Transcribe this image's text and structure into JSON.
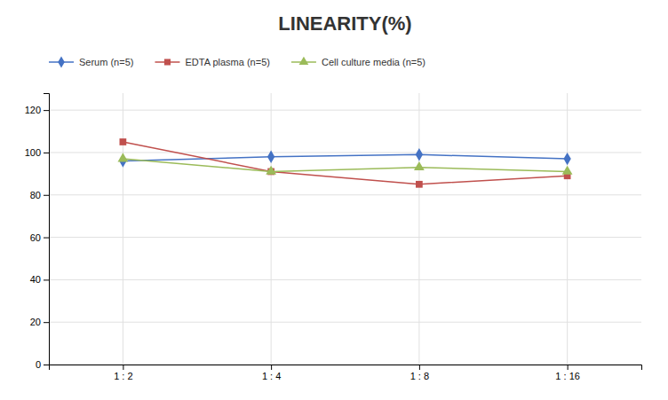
{
  "chart_data": {
    "type": "line",
    "title": "LINEARITY(%)",
    "categories": [
      "1 : 2",
      "1 : 4",
      "1 : 8",
      "1 : 16"
    ],
    "series": [
      {
        "name": "Serum (n=5)",
        "color": "#4472C4",
        "marker": "diamond",
        "values": [
          96,
          98,
          99,
          97
        ]
      },
      {
        "name": "EDTA plasma (n=5)",
        "color": "#C0504D",
        "marker": "square",
        "values": [
          105,
          91,
          85,
          89
        ]
      },
      {
        "name": "Cell culture media (n=5)",
        "color": "#9BBB59",
        "marker": "triangle",
        "values": [
          97,
          91,
          93,
          91
        ]
      }
    ],
    "ylim": [
      0,
      128
    ],
    "yticks": [
      0,
      20,
      40,
      60,
      80,
      100,
      120
    ],
    "grid": true,
    "legend": "top"
  }
}
